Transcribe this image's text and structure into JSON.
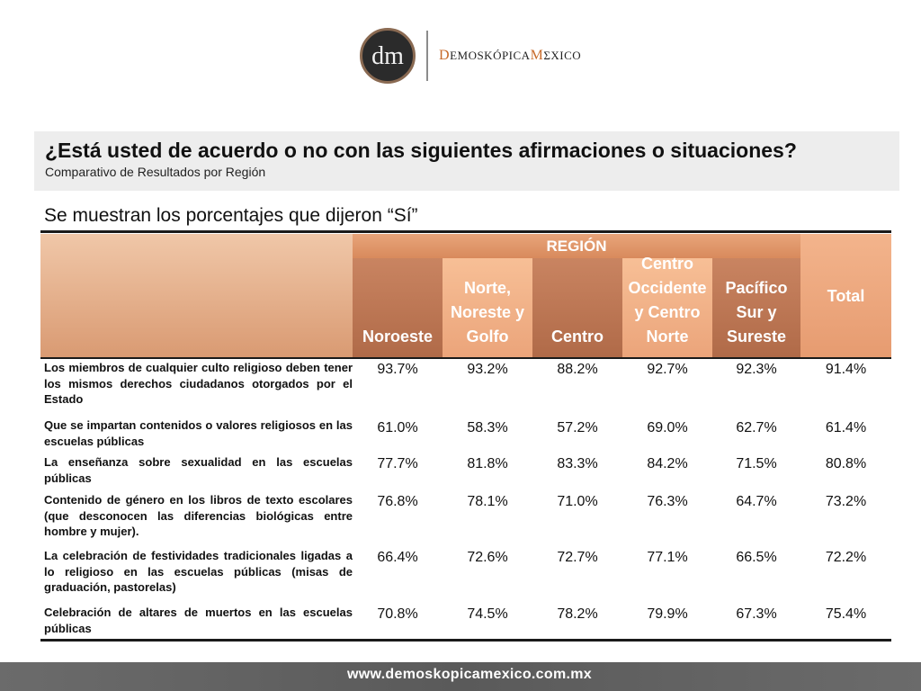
{
  "brand": {
    "logo_letters": "dm",
    "name_d": "D",
    "name_part1": "EMOSKÓPICA",
    "name_m": "M",
    "name_part2": "ΣXICO"
  },
  "header": {
    "question": "¿Está usted de acuerdo o no con las siguientes afirmaciones o situaciones?",
    "subtitle": "Comparativo de Resultados por Región",
    "note": "Se muestran los porcentajes que dijeron “Sí”"
  },
  "table": {
    "region_header": "REGIÓN",
    "columns": [
      "Noroeste",
      "Norte, Noreste y Golfo",
      "Centro",
      "Centro Occidente y Centro Norte",
      "Pacífico Sur y Sureste"
    ],
    "total_header": "Total",
    "rows": [
      {
        "label": "Los miembros de cualquier culto religioso deben tener los mismos derechos ciudadanos otorgados por el Estado",
        "values": [
          "93.7%",
          "93.2%",
          "88.2%",
          "92.7%",
          "92.3%",
          "91.4%"
        ]
      },
      {
        "label": "Que se impartan contenidos o valores religiosos en las escuelas públicas",
        "values": [
          "61.0%",
          "58.3%",
          "57.2%",
          "69.0%",
          "62.7%",
          "61.4%"
        ]
      },
      {
        "label": "La enseñanza sobre sexualidad en las escuelas públicas",
        "values": [
          "77.7%",
          "81.8%",
          "83.3%",
          "84.2%",
          "71.5%",
          "80.8%"
        ]
      },
      {
        "label": "Contenido de género en los libros de texto escolares (que desconocen las diferencias biológicas entre hombre y mujer).",
        "values": [
          "76.8%",
          "78.1%",
          "71.0%",
          "76.3%",
          "64.7%",
          "73.2%"
        ]
      },
      {
        "label": "La celebración de festividades tradicionales ligadas a lo religioso en las escuelas públicas (misas de graduación, pastorelas)",
        "values": [
          "66.4%",
          "72.6%",
          "72.7%",
          "77.1%",
          "66.5%",
          "72.2%"
        ]
      },
      {
        "label": "Celebración de altares de muertos en las escuelas públicas",
        "values": [
          "70.8%",
          "74.5%",
          "78.2%",
          "79.9%",
          "67.3%",
          "75.4%"
        ]
      }
    ]
  },
  "footer": {
    "url": "www.demoskopicamexico.com.mx"
  }
}
